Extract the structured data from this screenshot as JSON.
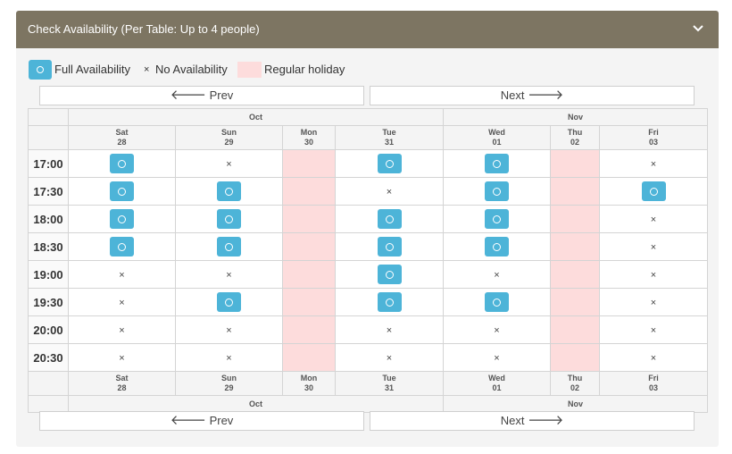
{
  "header": {
    "title": "Check Availability (Per Table: Up to 4 people)",
    "toggle_icon": "chevron-down-icon"
  },
  "legend": {
    "full": "Full Availability",
    "none_symbol": "×",
    "none": "No Availability",
    "holiday": "Regular holiday",
    "colors": {
      "available": "#4db4d8",
      "holiday": "#fddcdc",
      "header": "#7d7562"
    }
  },
  "nav": {
    "prev": "Prev",
    "next": "Next",
    "prev_icon": "arrow-left-icon",
    "next_icon": "arrow-right-icon"
  },
  "months": [
    {
      "label": "Oct",
      "span": 4
    },
    {
      "label": "Nov",
      "span": 3
    }
  ],
  "days": [
    {
      "dow": "Sat",
      "date": "28",
      "holiday": false
    },
    {
      "dow": "Sun",
      "date": "29",
      "holiday": false
    },
    {
      "dow": "Mon",
      "date": "30",
      "holiday": true
    },
    {
      "dow": "Tue",
      "date": "31",
      "holiday": false
    },
    {
      "dow": "Wed",
      "date": "01",
      "holiday": false
    },
    {
      "dow": "Thu",
      "date": "02",
      "holiday": true
    },
    {
      "dow": "Fri",
      "date": "03",
      "holiday": false
    }
  ],
  "slots": [
    {
      "time": "17:00",
      "cells": [
        "o",
        "x",
        "h",
        "o",
        "o",
        "h",
        "x"
      ]
    },
    {
      "time": "17:30",
      "cells": [
        "o",
        "o",
        "h",
        "x",
        "o",
        "h",
        "o"
      ]
    },
    {
      "time": "18:00",
      "cells": [
        "o",
        "o",
        "h",
        "o",
        "o",
        "h",
        "x"
      ]
    },
    {
      "time": "18:30",
      "cells": [
        "o",
        "o",
        "h",
        "o",
        "o",
        "h",
        "x"
      ]
    },
    {
      "time": "19:00",
      "cells": [
        "x",
        "x",
        "h",
        "o",
        "x",
        "h",
        "x"
      ]
    },
    {
      "time": "19:30",
      "cells": [
        "x",
        "o",
        "h",
        "o",
        "o",
        "h",
        "x"
      ]
    },
    {
      "time": "20:00",
      "cells": [
        "x",
        "x",
        "h",
        "x",
        "x",
        "h",
        "x"
      ]
    },
    {
      "time": "20:30",
      "cells": [
        "x",
        "x",
        "h",
        "x",
        "x",
        "h",
        "x"
      ]
    }
  ]
}
